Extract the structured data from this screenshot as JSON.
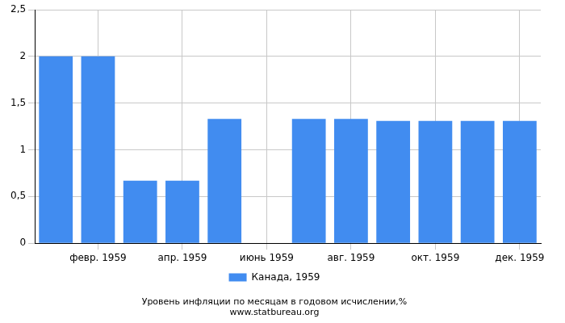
{
  "chart_data": {
    "type": "bar",
    "title": "Уровень инфляции по месяцам в годовом исчислении,%",
    "subtitle": "www.statbureau.org",
    "categories": [
      null,
      "февр. 1959",
      null,
      "апр. 1959",
      null,
      "июнь 1959",
      null,
      "авг. 1959",
      null,
      "окт. 1959",
      null,
      "дек. 1959"
    ],
    "series": [
      {
        "name": "Канада, 1959",
        "color": "#418cf0",
        "values": [
          2.0,
          2.0,
          0.67,
          0.67,
          1.33,
          0,
          1.33,
          1.33,
          1.31,
          1.31,
          1.31,
          1.31
        ]
      }
    ],
    "ylim": [
      0,
      2.5
    ],
    "yticks": [
      0,
      {
        "value": 0.5,
        "label": "0,5"
      },
      1,
      {
        "value": 1.5,
        "label": "1,5"
      },
      2,
      {
        "value": 2.5,
        "label": "2,5"
      }
    ],
    "grid": true,
    "legend": "bottom"
  }
}
